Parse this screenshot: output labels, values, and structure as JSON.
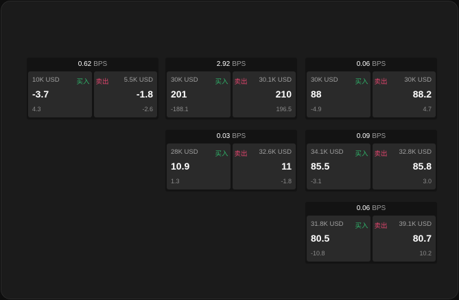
{
  "unit": "BPS",
  "labels": {
    "buy": "买入",
    "sell": "卖出"
  },
  "colors": {
    "buy": "#2fb36a",
    "sell": "#e0456d"
  },
  "tiles": [
    {
      "spread": "0.62",
      "buy": {
        "qty": "10K USD",
        "price": "-3.7",
        "change": "4.3"
      },
      "sell": {
        "qty": "5.5K USD",
        "price": "-1.8",
        "change": "-2.6"
      }
    },
    {
      "spread": "2.92",
      "buy": {
        "qty": "30K USD",
        "price": "201",
        "change": "-188.1"
      },
      "sell": {
        "qty": "30.1K USD",
        "price": "210",
        "change": "196.5"
      }
    },
    {
      "spread": "0.06",
      "buy": {
        "qty": "30K USD",
        "price": "88",
        "change": "-4.9"
      },
      "sell": {
        "qty": "30K USD",
        "price": "88.2",
        "change": "4.7"
      }
    },
    {
      "spread": "0.03",
      "buy": {
        "qty": "28K USD",
        "price": "10.9",
        "change": "1.3"
      },
      "sell": {
        "qty": "32.6K USD",
        "price": "11",
        "change": "-1.8"
      }
    },
    {
      "spread": "0.09",
      "buy": {
        "qty": "34.1K USD",
        "price": "85.5",
        "change": "-3.1"
      },
      "sell": {
        "qty": "32.8K USD",
        "price": "85.8",
        "change": "3.0"
      }
    },
    {
      "spread": "0.06",
      "buy": {
        "qty": "31.8K USD",
        "price": "80.5",
        "change": "-10.8"
      },
      "sell": {
        "qty": "39.1K USD",
        "price": "80.7",
        "change": "10.2"
      }
    }
  ]
}
